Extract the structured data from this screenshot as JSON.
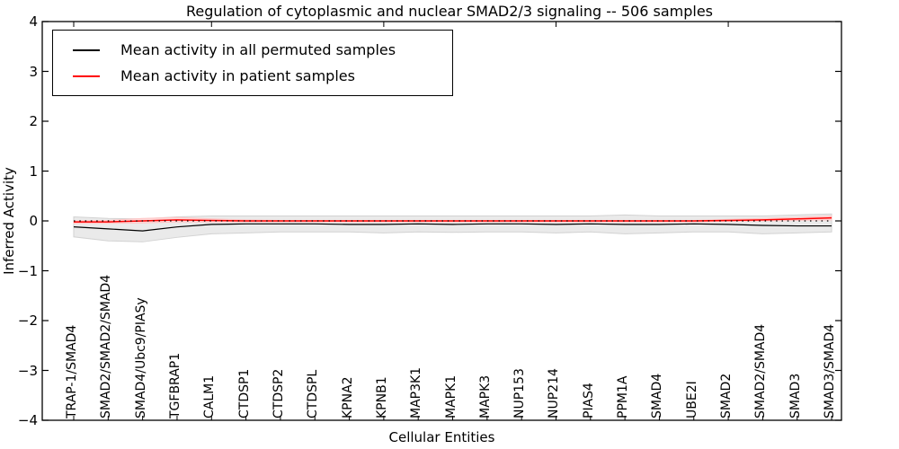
{
  "figure": {
    "title": "Regulation of cytoplasmic and nuclear SMAD2/3 signaling -- 506 samples",
    "xlabel": "Cellular Entities",
    "ylabel": "Inferred Activity"
  },
  "legend": {
    "items": [
      {
        "label": "Mean activity in all permuted samples",
        "color": "#000000"
      },
      {
        "label": "Mean activity in patient samples",
        "color": "#ff0000"
      }
    ]
  },
  "chart_data": {
    "type": "line",
    "title": "Regulation of cytoplasmic and nuclear SMAD2/3 signaling -- 506 samples",
    "xlabel": "Cellular Entities",
    "ylabel": "Inferred Activity",
    "ylim": [
      -4,
      4
    ],
    "ytick_labels": [
      "4",
      "3",
      "2",
      "1",
      "0",
      "−1",
      "−2",
      "−3",
      "−4"
    ],
    "ytick_values": [
      4,
      3,
      2,
      1,
      0,
      -1,
      -2,
      -3,
      -4
    ],
    "grid": false,
    "legend_position": "upper left",
    "top_tick_indices": [
      0,
      4,
      9,
      14,
      19
    ],
    "categories": [
      "TRAP-1/SMAD4",
      "SMAD2/SMAD2/SMAD4",
      "SMAD4/Ubc9/PIASy",
      "TGFBRAP1",
      "CALM1",
      "CTDSP1",
      "CTDSP2",
      "CTDSPL",
      "KPNA2",
      "KPNB1",
      "MAP3K1",
      "MAPK1",
      "MAPK3",
      "NUP153",
      "NUP214",
      "PIAS4",
      "PPM1A",
      "SMAD4",
      "UBE2I",
      "SMAD2",
      "SMAD2/SMAD4",
      "SMAD3",
      "SMAD3/SMAD4"
    ],
    "series": [
      {
        "name": "Mean activity in all permuted samples",
        "color": "#000000",
        "style": "solid",
        "values": [
          -0.12,
          -0.16,
          -0.2,
          -0.12,
          -0.07,
          -0.06,
          -0.06,
          -0.06,
          -0.07,
          -0.07,
          -0.06,
          -0.07,
          -0.06,
          -0.06,
          -0.07,
          -0.06,
          -0.07,
          -0.07,
          -0.06,
          -0.07,
          -0.09,
          -0.1,
          -0.1
        ]
      },
      {
        "name": "Mean activity in patient samples",
        "color": "#ff0000",
        "style": "solid",
        "values": [
          -0.02,
          -0.02,
          0.0,
          0.02,
          0.01,
          0.0,
          0.0,
          0.0,
          0.0,
          0.0,
          0.0,
          0.0,
          0.0,
          0.0,
          0.0,
          0.0,
          0.0,
          0.0,
          0.0,
          0.01,
          0.02,
          0.04,
          0.06
        ]
      }
    ],
    "bands": [
      {
        "name": "permuted-samples-range",
        "fill": "#eaeaea",
        "edge": "#d2d2d2",
        "upper": [
          0.08,
          0.05,
          0.04,
          0.08,
          0.1,
          0.1,
          0.1,
          0.1,
          0.1,
          0.1,
          0.1,
          0.1,
          0.1,
          0.1,
          0.1,
          0.1,
          0.12,
          0.1,
          0.1,
          0.1,
          0.1,
          0.12,
          0.14
        ],
        "lower": [
          -0.32,
          -0.4,
          -0.42,
          -0.33,
          -0.26,
          -0.24,
          -0.22,
          -0.22,
          -0.22,
          -0.24,
          -0.22,
          -0.23,
          -0.22,
          -0.22,
          -0.24,
          -0.22,
          -0.26,
          -0.24,
          -0.22,
          -0.22,
          -0.26,
          -0.24,
          -0.22
        ]
      },
      {
        "name": "patient-samples-range",
        "fill": "#ffd9d9",
        "edge": "#ffc6c6",
        "upper": [
          0.0,
          0.01,
          0.05,
          0.07,
          0.04,
          0.02,
          0.01,
          0.01,
          0.01,
          0.01,
          0.01,
          0.01,
          0.01,
          0.01,
          0.01,
          0.01,
          0.01,
          0.01,
          0.01,
          0.03,
          0.05,
          0.07,
          0.1
        ],
        "lower": [
          -0.05,
          -0.05,
          -0.04,
          -0.02,
          -0.02,
          -0.02,
          -0.02,
          -0.02,
          -0.02,
          -0.02,
          -0.02,
          -0.02,
          -0.02,
          -0.02,
          -0.02,
          -0.02,
          -0.02,
          -0.02,
          -0.02,
          -0.01,
          0.0,
          0.01,
          0.02
        ]
      }
    ],
    "zero_line": {
      "y": 0,
      "style": "dotted",
      "color": "#000000"
    }
  }
}
